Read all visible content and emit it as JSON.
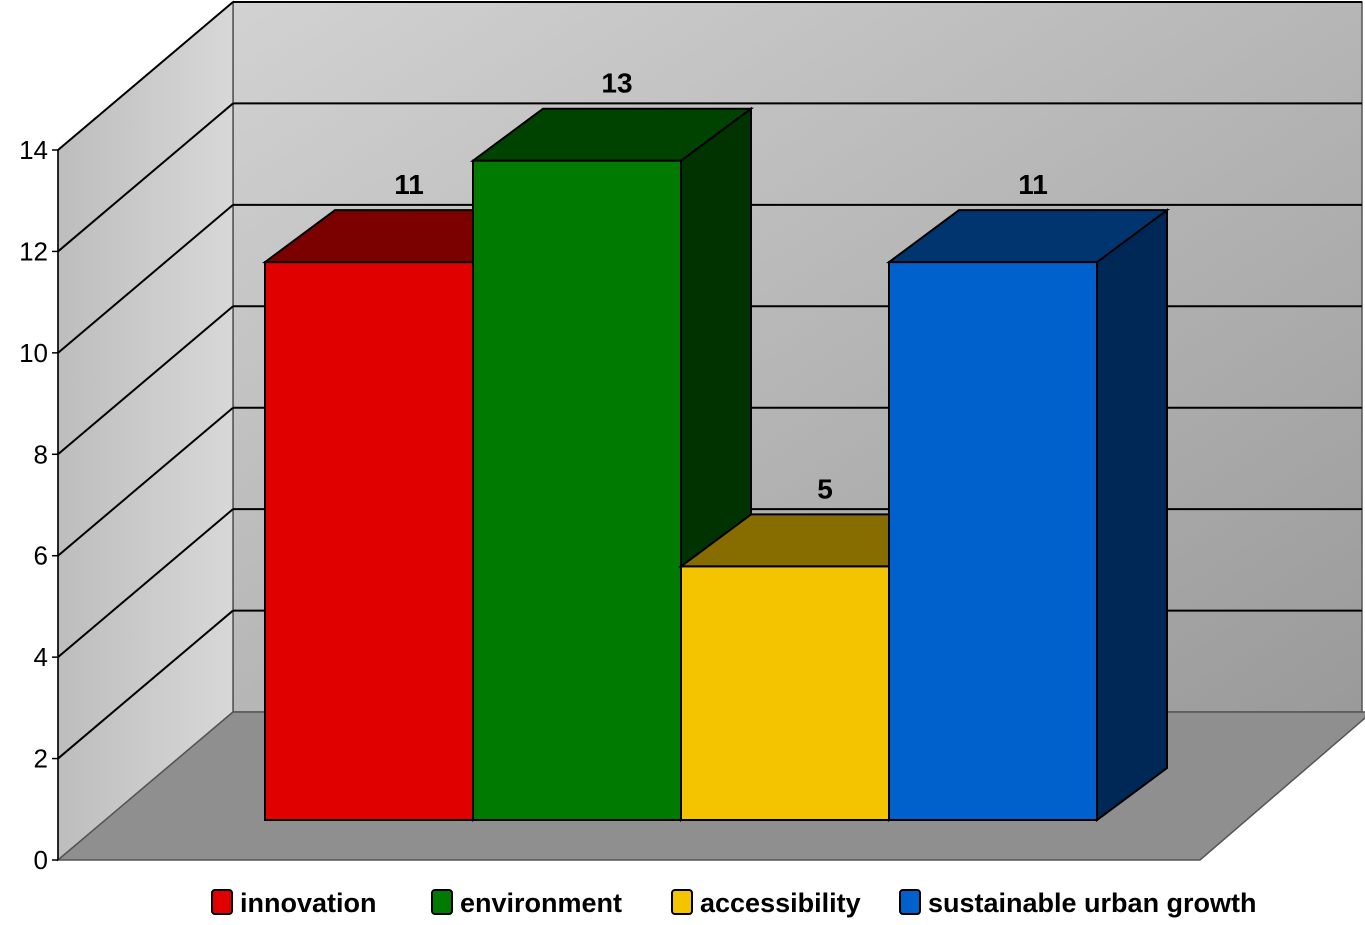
{
  "chart_data": {
    "type": "bar",
    "title": "",
    "xlabel": "",
    "ylabel": "",
    "categories": [
      "innovation",
      "environment",
      "accessibility",
      "sustainable urban growth"
    ],
    "values": [
      11,
      13,
      5,
      11
    ],
    "colors": [
      "#e00000",
      "#007a00",
      "#f5c400",
      "#0060cc"
    ],
    "ylim": [
      0,
      14
    ],
    "yticks": [
      "0",
      "2",
      "4",
      "6",
      "8",
      "10",
      "12",
      "14"
    ],
    "grid": true,
    "legend": {
      "position": "bottom",
      "entries": [
        "innovation",
        "environment",
        "accessibility",
        "sustainable urban growth"
      ]
    }
  }
}
